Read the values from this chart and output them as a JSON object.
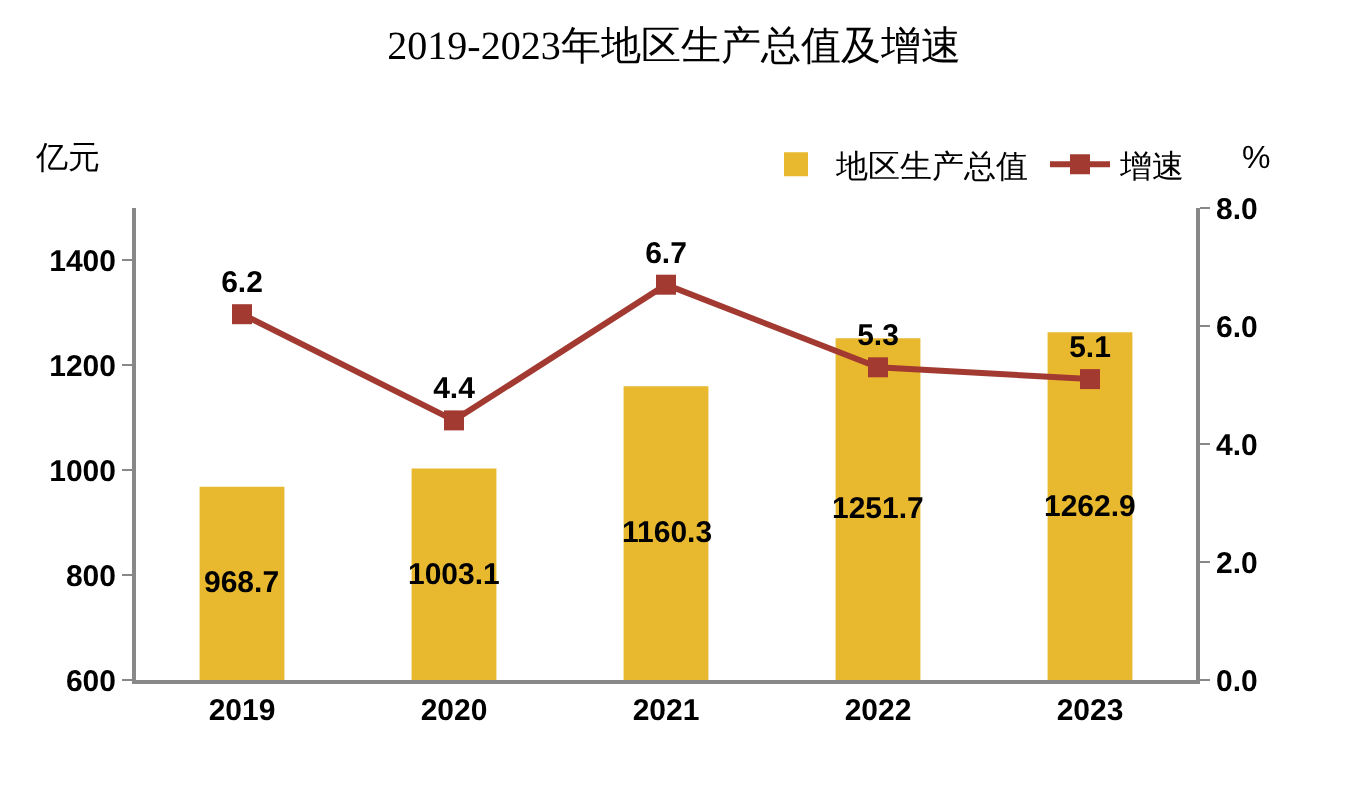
{
  "chart_data": {
    "type": "bar",
    "title": "2019-2023年地区生产总值及增速",
    "ylabel": "亿元",
    "y2label": "%",
    "categories": [
      "2019",
      "2020",
      "2021",
      "2022",
      "2023"
    ],
    "series": [
      {
        "name": "地区生产总值",
        "color": "#e8b92e",
        "values": [
          968.7,
          1003.1,
          1160.3,
          1251.7,
          1262.9
        ]
      },
      {
        "name": "增速",
        "type": "line",
        "axis": "y2",
        "color": "#a23a32",
        "marker": "square",
        "values": [
          6.2,
          4.4,
          6.7,
          5.3,
          5.1
        ]
      }
    ],
    "ylim": [
      600,
      1500
    ],
    "yticks": [
      600,
      800,
      1000,
      1200,
      1400
    ],
    "y2lim": [
      0,
      8
    ],
    "y2ticks": [
      {
        "value": 0,
        "label": "0.0"
      },
      {
        "value": 2,
        "label": "2.0"
      },
      {
        "value": 4,
        "label": "4.0"
      },
      {
        "value": 6,
        "label": "6.0"
      },
      {
        "value": 8,
        "label": "8.0"
      }
    ],
    "data_labels": true,
    "legend": "top right",
    "grid": false
  }
}
